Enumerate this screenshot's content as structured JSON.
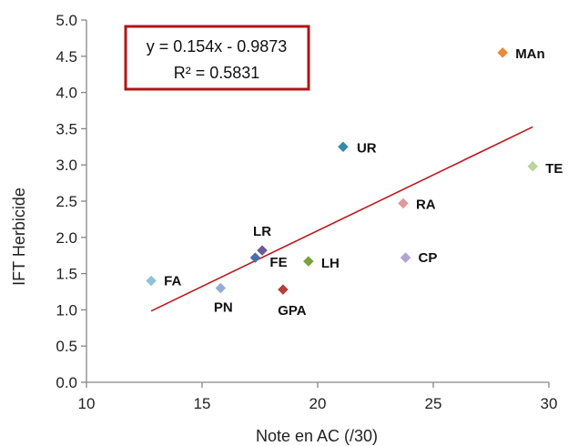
{
  "chart_data": {
    "type": "scatter",
    "xlabel": "Note en AC (/30)",
    "ylabel": "IFT Herbicide",
    "xlim": [
      10,
      30
    ],
    "ylim": [
      0,
      5
    ],
    "x_ticks": [
      "10",
      "15",
      "20",
      "25",
      "30"
    ],
    "y_ticks": [
      "0.0",
      "0.5",
      "1.0",
      "1.5",
      "2.0",
      "2.5",
      "3.0",
      "3.5",
      "4.0",
      "4.5",
      "5.0"
    ],
    "grid": false,
    "points": [
      {
        "label": "FA",
        "x": 12.8,
        "y": 1.4,
        "color": "#8fc1d9"
      },
      {
        "label": "PN",
        "x": 15.8,
        "y": 1.3,
        "color": "#96acd6"
      },
      {
        "label": "FE",
        "x": 17.3,
        "y": 1.72,
        "color": "#4a6ea8"
      },
      {
        "label": "LR",
        "x": 17.6,
        "y": 1.82,
        "color": "#6b5a9a"
      },
      {
        "label": "GPA",
        "x": 18.5,
        "y": 1.28,
        "color": "#b5403a"
      },
      {
        "label": "LH",
        "x": 19.6,
        "y": 1.67,
        "color": "#7aa13c"
      },
      {
        "label": "UR",
        "x": 21.1,
        "y": 3.25,
        "color": "#2f8cab"
      },
      {
        "label": "RA",
        "x": 23.7,
        "y": 2.47,
        "color": "#e0989a"
      },
      {
        "label": "CP",
        "x": 23.8,
        "y": 1.72,
        "color": "#b3a3cf"
      },
      {
        "label": "MAn",
        "x": 28.0,
        "y": 4.55,
        "color": "#e8893a"
      },
      {
        "label": "TE",
        "x": 29.3,
        "y": 2.98,
        "color": "#b9d59a"
      }
    ],
    "trendline": {
      "equation": "y = 0.154x - 0.9873",
      "r_squared": "R² = 0.5831",
      "x_range": [
        12.8,
        29.3
      ],
      "slope": 0.154,
      "intercept": -0.9873,
      "color": "#c0161c"
    },
    "equation_box_color": "#b0141a"
  }
}
